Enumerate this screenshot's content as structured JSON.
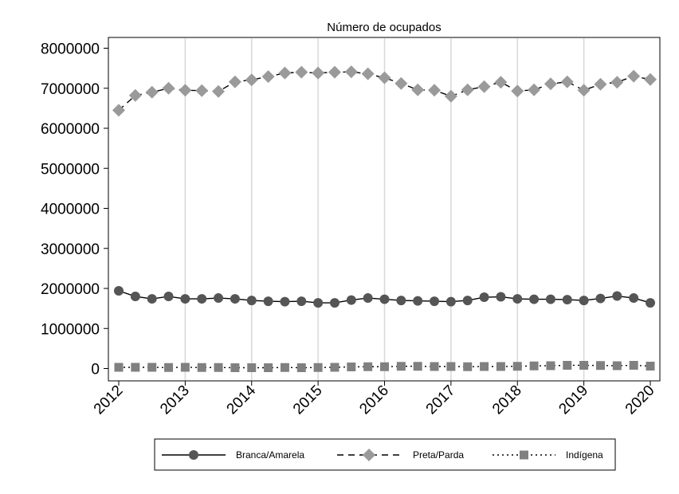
{
  "chart_data": {
    "type": "line",
    "title": "Número de ocupados",
    "xlabel": "",
    "ylabel": "",
    "x": [
      2012.0,
      2012.25,
      2012.5,
      2012.75,
      2013.0,
      2013.25,
      2013.5,
      2013.75,
      2014.0,
      2014.25,
      2014.5,
      2014.75,
      2015.0,
      2015.25,
      2015.5,
      2015.75,
      2016.0,
      2016.25,
      2016.5,
      2016.75,
      2017.0,
      2017.25,
      2017.5,
      2017.75,
      2018.0,
      2018.25,
      2018.5,
      2018.75,
      2019.0,
      2019.25,
      2019.5,
      2019.75,
      2020.0
    ],
    "xticks": [
      "2012",
      "2013",
      "2014",
      "2015",
      "2016",
      "2017",
      "2018",
      "2019",
      "2020"
    ],
    "xlim": [
      2012,
      2020
    ],
    "yticks": [
      "0",
      "1000000",
      "2000000",
      "3000000",
      "4000000",
      "5000000",
      "6000000",
      "7000000",
      "8000000"
    ],
    "ylim": [
      0,
      8000000
    ],
    "grid": "vertical",
    "legend_position": "bottom",
    "series": [
      {
        "name": "Branca/Amarela",
        "marker": "circle",
        "line": "solid",
        "color": "#555555",
        "values": [
          1940000,
          1800000,
          1740000,
          1800000,
          1740000,
          1740000,
          1760000,
          1740000,
          1700000,
          1680000,
          1670000,
          1680000,
          1640000,
          1640000,
          1710000,
          1760000,
          1730000,
          1700000,
          1690000,
          1680000,
          1670000,
          1700000,
          1780000,
          1790000,
          1740000,
          1730000,
          1730000,
          1720000,
          1700000,
          1750000,
          1810000,
          1760000,
          1640000
        ]
      },
      {
        "name": "Preta/Parda",
        "marker": "diamond",
        "line": "dashed",
        "color": "#9a9a9a",
        "values": [
          6450000,
          6820000,
          6900000,
          7000000,
          6950000,
          6940000,
          6920000,
          7160000,
          7210000,
          7290000,
          7380000,
          7400000,
          7380000,
          7400000,
          7410000,
          7360000,
          7260000,
          7120000,
          6960000,
          6950000,
          6800000,
          6960000,
          7040000,
          7150000,
          6930000,
          6960000,
          7110000,
          7160000,
          6950000,
          7100000,
          7150000,
          7300000,
          7220000
        ]
      },
      {
        "name": "Indígena",
        "marker": "square",
        "line": "dotted",
        "color": "#808080",
        "values": [
          30000,
          30000,
          30000,
          25000,
          30000,
          25000,
          25000,
          20000,
          20000,
          20000,
          25000,
          20000,
          25000,
          30000,
          40000,
          45000,
          45000,
          55000,
          55000,
          50000,
          50000,
          45000,
          50000,
          50000,
          55000,
          65000,
          70000,
          80000,
          80000,
          75000,
          70000,
          80000,
          60000
        ]
      }
    ]
  }
}
